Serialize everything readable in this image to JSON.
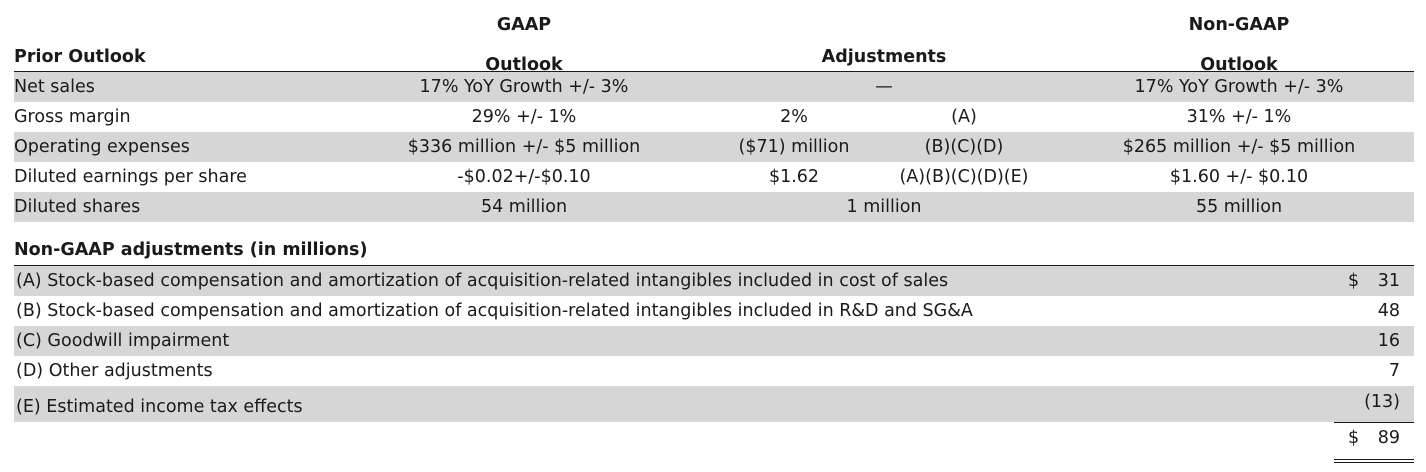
{
  "header": {
    "prior_outlook": "Prior Outlook",
    "gaap_line1": "GAAP",
    "gaap_line2": "Outlook",
    "adjustments": "Adjustments",
    "nongaap_line1": "Non-GAAP",
    "nongaap_line2": "Outlook"
  },
  "outlook_rows": [
    {
      "label": "Net sales",
      "gaap": "17% YoY Growth +/- 3%",
      "adj_value": "—",
      "adj_ref": "",
      "non_gaap": "17% YoY Growth +/- 3%"
    },
    {
      "label": "Gross margin",
      "gaap": "29% +/- 1%",
      "adj_value": "2%",
      "adj_ref": "(A)",
      "non_gaap": "31% +/- 1%"
    },
    {
      "label": "Operating expenses",
      "gaap": "$336 million +/- $5 million",
      "adj_value": "($71) million",
      "adj_ref": "(B)(C)(D)",
      "non_gaap": "$265 million +/- $5 million"
    },
    {
      "label": "Diluted earnings per share",
      "gaap": "-$0.02+/-$0.10",
      "adj_value": "$1.62",
      "adj_ref": "(A)(B)(C)(D)(E)",
      "non_gaap": "$1.60 +/- $0.10"
    },
    {
      "label": "Diluted shares",
      "gaap": "54 million",
      "adj_value": "1 million",
      "adj_ref": "",
      "non_gaap": "55 million"
    }
  ],
  "adjustments_section": {
    "title": "Non-GAAP adjustments (in millions)",
    "currency_symbol": "$",
    "items": [
      {
        "description": "(A) Stock-based compensation and amortization of acquisition-related intangibles included in cost of sales",
        "amount": "31"
      },
      {
        "description": "(B) Stock-based compensation and amortization of acquisition-related intangibles included in R&D and SG&A",
        "amount": "48"
      },
      {
        "description": "(C) Goodwill impairment",
        "amount": "16"
      },
      {
        "description": "(D) Other adjustments",
        "amount": "7"
      },
      {
        "description": "(E) Estimated income tax effects",
        "amount": "(13)"
      }
    ],
    "total": "89"
  }
}
